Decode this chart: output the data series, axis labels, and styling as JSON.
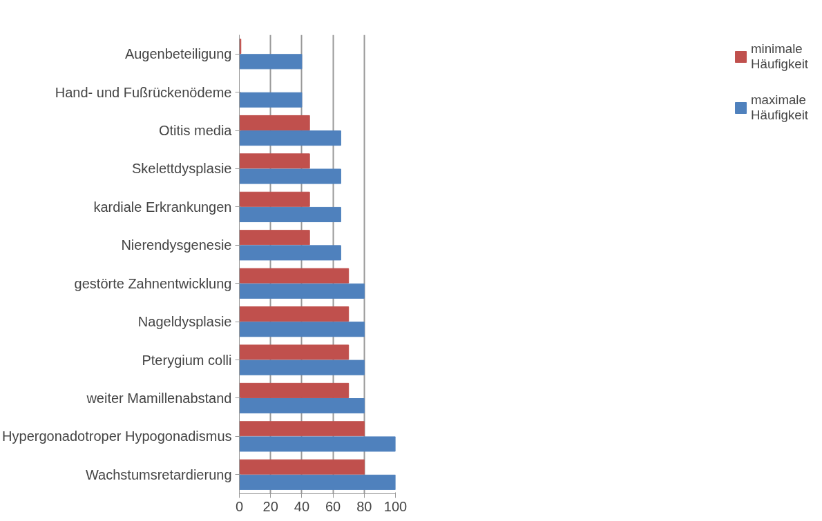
{
  "chart_data": {
    "type": "bar",
    "orientation": "horizontal",
    "categories": [
      "Augenbeteiligung",
      "Hand- und Fußrückenödeme",
      "Otitis media",
      "Skelettdysplasie",
      "kardiale Erkrankungen",
      "Nierendysgenesie",
      "gestörte Zahnentwicklung",
      "Nageldysplasie",
      "Pterygium colli",
      "weiter Mamillenabstand",
      "Hypergonadotroper Hypogonadismus",
      "Wachstumsretardierung"
    ],
    "series": [
      {
        "name": "minimale Häufigkeit",
        "color": "#c0504d",
        "values": [
          1,
          null,
          45,
          45,
          45,
          45,
          70,
          70,
          70,
          70,
          80,
          80
        ]
      },
      {
        "name": "maximale Häufigkeit",
        "color": "#4f81bd",
        "values": [
          40,
          40,
          65,
          65,
          65,
          65,
          80,
          80,
          80,
          80,
          100,
          100
        ]
      }
    ],
    "xlim": [
      0,
      100
    ],
    "xticks": [
      0,
      20,
      40,
      60,
      80,
      100
    ],
    "grid": "x",
    "legend": "right"
  }
}
